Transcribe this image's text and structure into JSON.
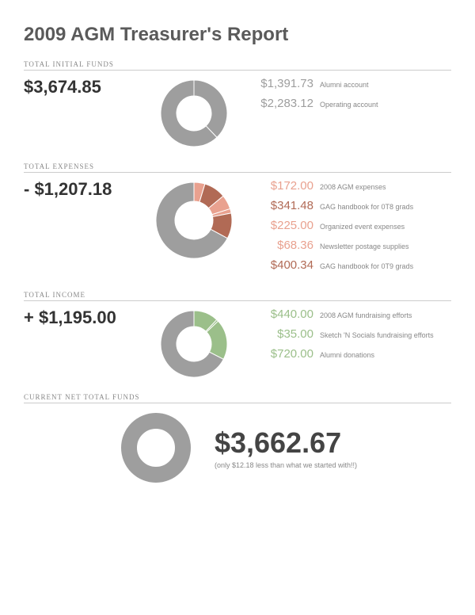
{
  "title": "2009 AGM Treasurer's Report",
  "colors": {
    "grey": "#9e9e9e",
    "grey_text": "#9e9e9e",
    "salmon": "#e9a18f",
    "dark_salmon": "#b16a55",
    "green": "#9bbf8a",
    "title_color": "#5a5a5a",
    "amount_color": "#333333",
    "hole": "#ffffff"
  },
  "initial": {
    "header": "TOTAL INITIAL FUNDS",
    "amount": "$3,674.85",
    "items": [
      {
        "amount": "$1,391.73",
        "label": "Alumni account",
        "color": "#9e9e9e"
      },
      {
        "amount": "$2,283.12",
        "label": "Operating account",
        "color": "#9e9e9e"
      }
    ],
    "chart": {
      "type": "donut",
      "outer_r": 42,
      "inner_r": 22,
      "slices": [
        {
          "value": 1391.73,
          "color": "#9e9e9e"
        },
        {
          "value": 2283.12,
          "color": "#9e9e9e"
        }
      ]
    }
  },
  "expenses": {
    "header": "TOTAL EXPENSES",
    "amount": "- $1,207.18",
    "items": [
      {
        "amount": "$172.00",
        "label": "2008 AGM expenses",
        "color": "#e9a18f"
      },
      {
        "amount": "$341.48",
        "label": "GAG handbook for 0T8 grads",
        "color": "#b16a55"
      },
      {
        "amount": "$225.00",
        "label": "Organized event expenses",
        "color": "#e9a18f"
      },
      {
        "amount": "$68.36",
        "label": "Newsletter postage supplies",
        "color": "#e9a18f"
      },
      {
        "amount": "$400.34",
        "label": "GAG handbook for 0T9 grads",
        "color": "#b16a55"
      }
    ],
    "chart": {
      "type": "donut",
      "outer_r": 48,
      "inner_r": 24,
      "slices": [
        {
          "value": 172.0,
          "color": "#e9a18f"
        },
        {
          "value": 341.48,
          "color": "#b16a55"
        },
        {
          "value": 225.0,
          "color": "#e9a18f"
        },
        {
          "value": 68.36,
          "color": "#e9a18f"
        },
        {
          "value": 400.34,
          "color": "#b16a55"
        },
        {
          "value": 2467.67,
          "color": "#9e9e9e"
        }
      ]
    }
  },
  "income": {
    "header": "TOTAL INCOME",
    "amount": "+ $1,195.00",
    "items": [
      {
        "amount": "$440.00",
        "label": "2008 AGM fundraising efforts",
        "color": "#9bbf8a"
      },
      {
        "amount": "$35.00",
        "label": "Sketch 'N Socials fundraising efforts",
        "color": "#9bbf8a"
      },
      {
        "amount": "$720.00",
        "label": "Alumni donations",
        "color": "#9bbf8a"
      }
    ],
    "chart": {
      "type": "donut",
      "outer_r": 42,
      "inner_r": 22,
      "slices": [
        {
          "value": 440.0,
          "color": "#9bbf8a"
        },
        {
          "value": 35.0,
          "color": "#9bbf8a"
        },
        {
          "value": 720.0,
          "color": "#9bbf8a"
        },
        {
          "value": 2467.67,
          "color": "#9e9e9e"
        }
      ]
    }
  },
  "net": {
    "header": "CURRENT NET TOTAL FUNDS",
    "amount": "$3,662.67",
    "note": "(only $12.18 less than what we started with!!)",
    "chart": {
      "type": "donut",
      "outer_r": 44,
      "inner_r": 24,
      "slices": [
        {
          "value": 1,
          "color": "#9e9e9e"
        }
      ]
    }
  }
}
